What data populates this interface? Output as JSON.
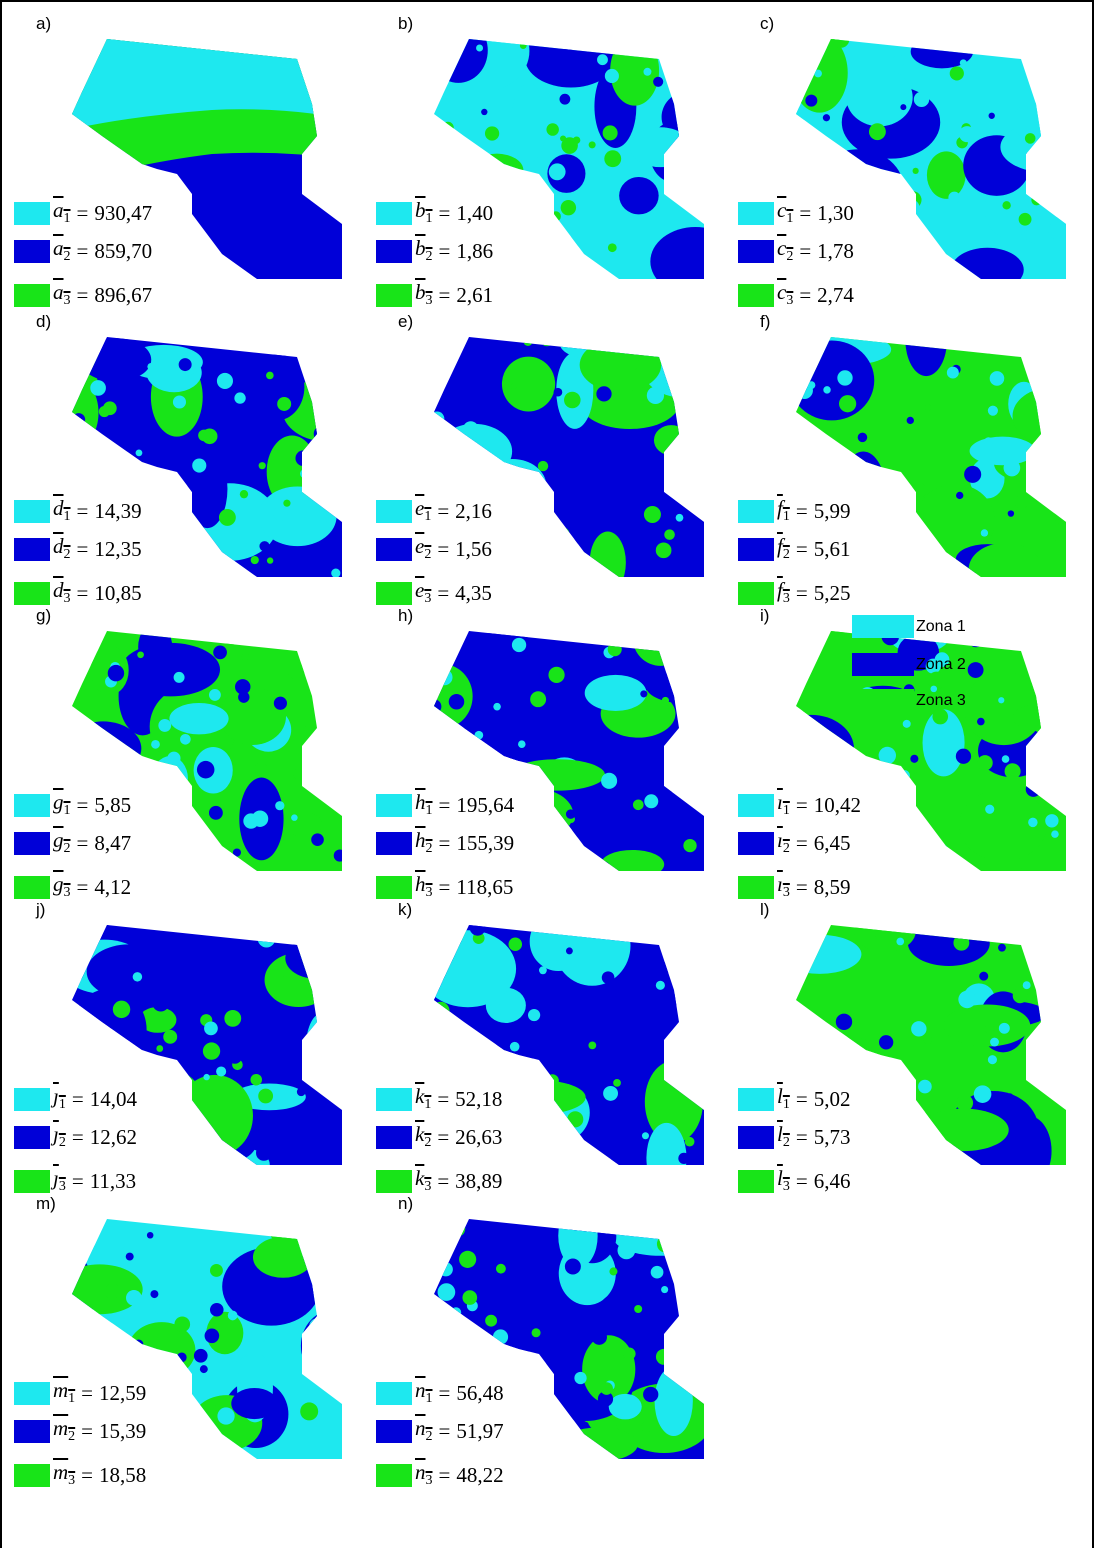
{
  "panels": [
    {
      "label": "a)",
      "symbol": "a",
      "entries": [
        {
          "index": "1",
          "value": "930,47"
        },
        {
          "index": "2",
          "value": "859,70"
        },
        {
          "index": "3",
          "value": "896,67"
        }
      ]
    },
    {
      "label": "b)",
      "symbol": "b",
      "entries": [
        {
          "index": "1",
          "value": "1,40"
        },
        {
          "index": "2",
          "value": "1,86"
        },
        {
          "index": "3",
          "value": "2,61"
        }
      ]
    },
    {
      "label": "c)",
      "symbol": "c",
      "entries": [
        {
          "index": "1",
          "value": "1,30"
        },
        {
          "index": "2",
          "value": "1,78"
        },
        {
          "index": "3",
          "value": "2,74"
        }
      ]
    },
    {
      "label": "d)",
      "symbol": "d",
      "entries": [
        {
          "index": "1",
          "value": "14,39"
        },
        {
          "index": "2",
          "value": "12,35"
        },
        {
          "index": "3",
          "value": "10,85"
        }
      ]
    },
    {
      "label": "e)",
      "symbol": "e",
      "entries": [
        {
          "index": "1",
          "value": "2,16"
        },
        {
          "index": "2",
          "value": "1,56"
        },
        {
          "index": "3",
          "value": "4,35"
        }
      ]
    },
    {
      "label": "f)",
      "symbol": "f",
      "entries": [
        {
          "index": "1",
          "value": "5,99"
        },
        {
          "index": "2",
          "value": "5,61"
        },
        {
          "index": "3",
          "value": "5,25"
        }
      ]
    },
    {
      "label": "g)",
      "symbol": "g",
      "entries": [
        {
          "index": "1",
          "value": "5,85"
        },
        {
          "index": "2",
          "value": "8,47"
        },
        {
          "index": "3",
          "value": "4,12"
        }
      ]
    },
    {
      "label": "h)",
      "symbol": "h",
      "entries": [
        {
          "index": "1",
          "value": "195,64"
        },
        {
          "index": "2",
          "value": "155,39"
        },
        {
          "index": "3",
          "value": "118,65"
        }
      ]
    },
    {
      "label": "i)",
      "symbol": "ı",
      "entries": [
        {
          "index": "1",
          "value": "10,42"
        },
        {
          "index": "2",
          "value": "6,45"
        },
        {
          "index": "3",
          "value": "8,59"
        }
      ]
    },
    {
      "label": "j)",
      "symbol": "ȷ",
      "entries": [
        {
          "index": "1",
          "value": "14,04"
        },
        {
          "index": "2",
          "value": "12,62"
        },
        {
          "index": "3",
          "value": "11,33"
        }
      ]
    },
    {
      "label": "k)",
      "symbol": "k",
      "entries": [
        {
          "index": "1",
          "value": "52,18"
        },
        {
          "index": "2",
          "value": "26,63"
        },
        {
          "index": "3",
          "value": "38,89"
        }
      ]
    },
    {
      "label": "l)",
      "symbol": "l",
      "entries": [
        {
          "index": "1",
          "value": "5,02"
        },
        {
          "index": "2",
          "value": "5,73"
        },
        {
          "index": "3",
          "value": "6,46"
        }
      ]
    },
    {
      "label": "m)",
      "symbol": "m",
      "entries": [
        {
          "index": "1",
          "value": "12,59"
        },
        {
          "index": "2",
          "value": "15,39"
        },
        {
          "index": "3",
          "value": "18,58"
        }
      ]
    },
    {
      "label": "n)",
      "symbol": "n",
      "entries": [
        {
          "index": "1",
          "value": "56,48"
        },
        {
          "index": "2",
          "value": "51,97"
        },
        {
          "index": "3",
          "value": "48,22"
        }
      ]
    }
  ],
  "equals": "=",
  "legend": [
    {
      "name": "Zona 1",
      "color": "#1ee8ef"
    },
    {
      "name": "Zona 2",
      "color": "#0000d8"
    },
    {
      "name": "Zona 3",
      "color": "#18e418"
    }
  ]
}
